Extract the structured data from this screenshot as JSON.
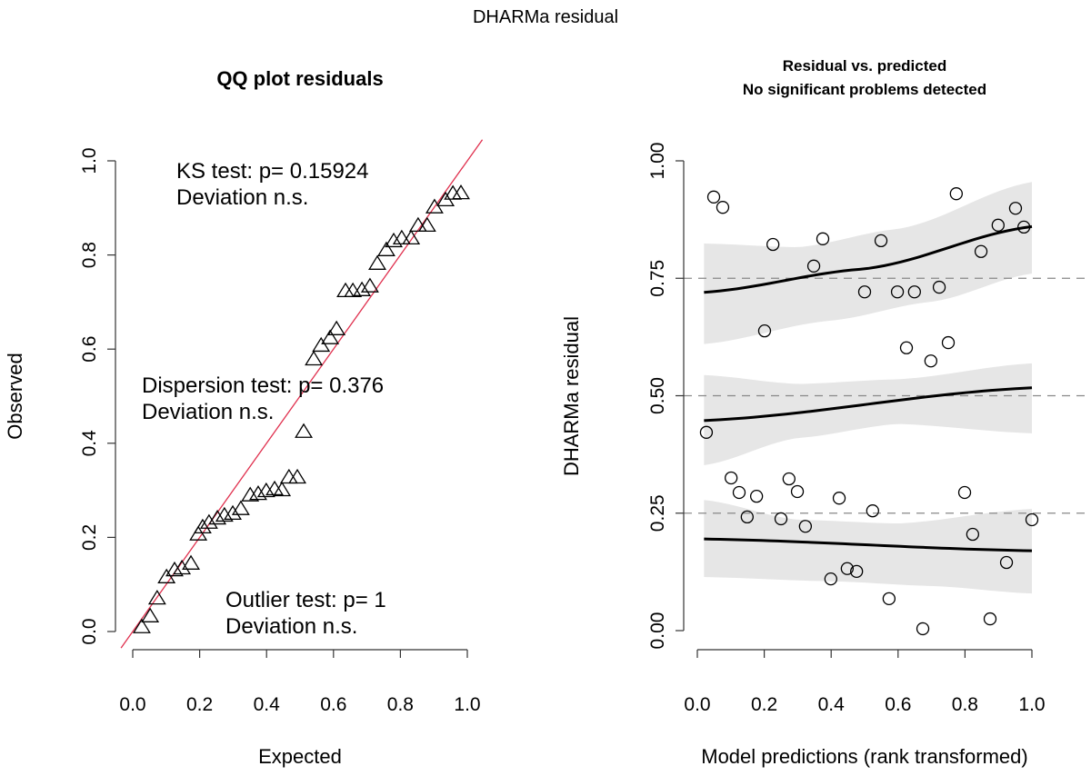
{
  "figure_title": "DHARMa residual",
  "chart_data": [
    {
      "type": "scatter",
      "title": "QQ plot residuals",
      "xlabel": "Expected",
      "ylabel": "Observed",
      "xlim": [
        0,
        1
      ],
      "ylim": [
        0,
        1
      ],
      "xticks": [
        "0.0",
        "0.2",
        "0.4",
        "0.6",
        "0.8",
        "1.0"
      ],
      "yticks": [
        "0.0",
        "0.2",
        "0.4",
        "0.6",
        "0.8",
        "1.0"
      ],
      "marker": "triangle",
      "reference_line": {
        "slope": 1,
        "intercept": 0,
        "color": "#e0304e"
      },
      "annotations": [
        {
          "line1": "KS test: p= 0.15924",
          "line2": "Deviation  n.s."
        },
        {
          "line1": "Dispersion test: p= 0.376",
          "line2": "Deviation  n.s."
        },
        {
          "line1": "Outlier test: p= 1",
          "line2": "Deviation  n.s."
        }
      ],
      "points": [
        [
          0.027,
          0.01
        ],
        [
          0.052,
          0.033
        ],
        [
          0.073,
          0.071
        ],
        [
          0.101,
          0.116
        ],
        [
          0.125,
          0.131
        ],
        [
          0.147,
          0.135
        ],
        [
          0.174,
          0.145
        ],
        [
          0.196,
          0.207
        ],
        [
          0.209,
          0.222
        ],
        [
          0.228,
          0.232
        ],
        [
          0.253,
          0.241
        ],
        [
          0.274,
          0.247
        ],
        [
          0.299,
          0.251
        ],
        [
          0.323,
          0.261
        ],
        [
          0.351,
          0.29
        ],
        [
          0.375,
          0.293
        ],
        [
          0.399,
          0.299
        ],
        [
          0.424,
          0.303
        ],
        [
          0.446,
          0.301
        ],
        [
          0.467,
          0.328
        ],
        [
          0.492,
          0.328
        ],
        [
          0.511,
          0.425
        ],
        [
          0.541,
          0.579
        ],
        [
          0.563,
          0.608
        ],
        [
          0.59,
          0.624
        ],
        [
          0.609,
          0.643
        ],
        [
          0.636,
          0.724
        ],
        [
          0.658,
          0.724
        ],
        [
          0.685,
          0.726
        ],
        [
          0.709,
          0.734
        ],
        [
          0.731,
          0.782
        ],
        [
          0.758,
          0.811
        ],
        [
          0.78,
          0.83
        ],
        [
          0.804,
          0.836
        ],
        [
          0.832,
          0.836
        ],
        [
          0.853,
          0.863
        ],
        [
          0.88,
          0.863
        ],
        [
          0.902,
          0.902
        ],
        [
          0.935,
          0.917
        ],
        [
          0.957,
          0.931
        ],
        [
          0.981,
          0.932
        ]
      ]
    },
    {
      "type": "scatter",
      "title": "Residual vs. predicted",
      "subtitle": "No significant problems detected",
      "xlabel": "Model predictions (rank transformed)",
      "ylabel": "DHARMa residual",
      "xlim": [
        0,
        1
      ],
      "ylim": [
        0,
        1
      ],
      "xticks": [
        "0.0",
        "0.2",
        "0.4",
        "0.6",
        "0.8",
        "1.0"
      ],
      "yticks": [
        "0.00",
        "0.25",
        "0.50",
        "0.75",
        "1.00"
      ],
      "marker": "circle",
      "reference_hlines": [
        0.25,
        0.5,
        0.75
      ],
      "band_color": "#e6e6e6",
      "quantile_fits": [
        {
          "quantile": 0.75,
          "line": [
            [
              0.02,
              0.72
            ],
            [
              0.5,
              0.77
            ],
            [
              1.0,
              0.86
            ]
          ],
          "upper": [
            [
              0.02,
              0.824
            ],
            [
              0.3,
              0.816
            ],
            [
              0.6,
              0.855
            ],
            [
              1.0,
              0.955
            ]
          ],
          "lower": [
            [
              0.02,
              0.61
            ],
            [
              0.4,
              0.66
            ],
            [
              0.7,
              0.7
            ],
            [
              1.0,
              0.76
            ]
          ]
        },
        {
          "quantile": 0.5,
          "line": [
            [
              0.02,
              0.447
            ],
            [
              1.0,
              0.517
            ]
          ],
          "upper": [
            [
              0.02,
              0.544
            ],
            [
              0.3,
              0.525
            ],
            [
              0.6,
              0.535
            ],
            [
              1.0,
              0.569
            ]
          ],
          "lower": [
            [
              0.02,
              0.352
            ],
            [
              0.3,
              0.41
            ],
            [
              0.6,
              0.44
            ],
            [
              1.0,
              0.42
            ]
          ]
        },
        {
          "quantile": 0.25,
          "line": [
            [
              0.02,
              0.195
            ],
            [
              1.0,
              0.17
            ]
          ],
          "upper": [
            [
              0.02,
              0.278
            ],
            [
              0.3,
              0.236
            ],
            [
              0.6,
              0.228
            ],
            [
              1.0,
              0.259
            ]
          ],
          "lower": [
            [
              0.02,
              0.114
            ],
            [
              0.4,
              0.105
            ],
            [
              0.7,
              0.095
            ],
            [
              1.0,
              0.079
            ]
          ]
        }
      ],
      "points": [
        [
          0.049,
          0.923
        ],
        [
          0.076,
          0.901
        ],
        [
          0.226,
          0.822
        ],
        [
          0.375,
          0.834
        ],
        [
          0.348,
          0.776
        ],
        [
          0.549,
          0.83
        ],
        [
          0.774,
          0.93
        ],
        [
          0.951,
          0.899
        ],
        [
          0.899,
          0.863
        ],
        [
          0.976,
          0.859
        ],
        [
          0.848,
          0.807
        ],
        [
          0.5,
          0.721
        ],
        [
          0.598,
          0.721
        ],
        [
          0.649,
          0.721
        ],
        [
          0.723,
          0.731
        ],
        [
          0.201,
          0.638
        ],
        [
          0.625,
          0.602
        ],
        [
          0.75,
          0.613
        ],
        [
          0.698,
          0.574
        ],
        [
          0.027,
          0.422
        ],
        [
          0.101,
          0.325
        ],
        [
          0.125,
          0.294
        ],
        [
          0.177,
          0.286
        ],
        [
          0.274,
          0.323
        ],
        [
          0.299,
          0.296
        ],
        [
          0.424,
          0.282
        ],
        [
          0.149,
          0.242
        ],
        [
          0.25,
          0.238
        ],
        [
          0.323,
          0.222
        ],
        [
          0.524,
          0.255
        ],
        [
          0.799,
          0.294
        ],
        [
          1.0,
          0.236
        ],
        [
          0.823,
          0.205
        ],
        [
          0.924,
          0.145
        ],
        [
          0.448,
          0.132
        ],
        [
          0.476,
          0.126
        ],
        [
          0.399,
          0.11
        ],
        [
          0.573,
          0.068
        ],
        [
          0.875,
          0.025
        ],
        [
          0.674,
          0.004
        ]
      ]
    }
  ]
}
